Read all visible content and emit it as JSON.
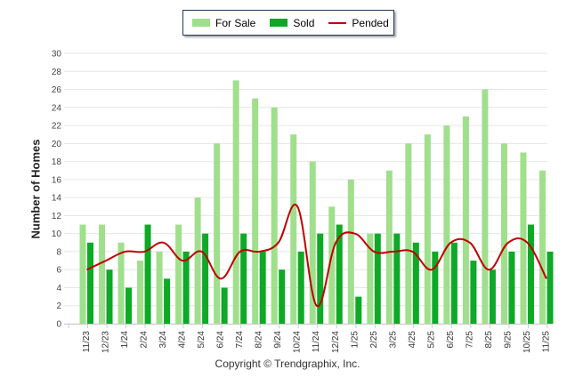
{
  "chart_data": {
    "type": "bar",
    "title": "",
    "xlabel": "",
    "ylabel": "Number of Homes",
    "ylim": [
      0,
      30
    ],
    "yticks": [
      0,
      2,
      4,
      6,
      8,
      10,
      12,
      14,
      16,
      18,
      20,
      22,
      24,
      26,
      28,
      30
    ],
    "grid": true,
    "legend_position": "top-center",
    "categories": [
      "11/23",
      "12/23",
      "1/24",
      "2/24",
      "3/24",
      "4/24",
      "5/24",
      "6/24",
      "7/24",
      "8/24",
      "9/24",
      "10/24",
      "11/24",
      "12/24",
      "1/25",
      "2/25",
      "3/25",
      "4/25",
      "5/25",
      "6/25",
      "7/25",
      "8/25",
      "9/25",
      "10/25",
      "11/25"
    ],
    "series": [
      {
        "name": "For Sale",
        "type": "bar",
        "color": "#a0df8c",
        "values": [
          11,
          11,
          9,
          7,
          8,
          11,
          14,
          20,
          27,
          25,
          24,
          21,
          18,
          13,
          16,
          10,
          17,
          20,
          21,
          22,
          23,
          26,
          20,
          19,
          17
        ]
      },
      {
        "name": "Sold",
        "type": "bar",
        "color": "#0ea926",
        "values": [
          9,
          6,
          4,
          11,
          5,
          8,
          10,
          4,
          10,
          8,
          6,
          8,
          10,
          11,
          3,
          10,
          10,
          9,
          8,
          9,
          7,
          6,
          8,
          11,
          8
        ]
      },
      {
        "name": "Pended",
        "type": "line",
        "color": "#c00000",
        "values": [
          6,
          7,
          8,
          8,
          9,
          7,
          8,
          5,
          8,
          8,
          9,
          13,
          2,
          9,
          10,
          8,
          8,
          8,
          6,
          9,
          9,
          6,
          9,
          9,
          5
        ]
      }
    ],
    "footer": "Copyright © Trendgraphix, Inc."
  }
}
